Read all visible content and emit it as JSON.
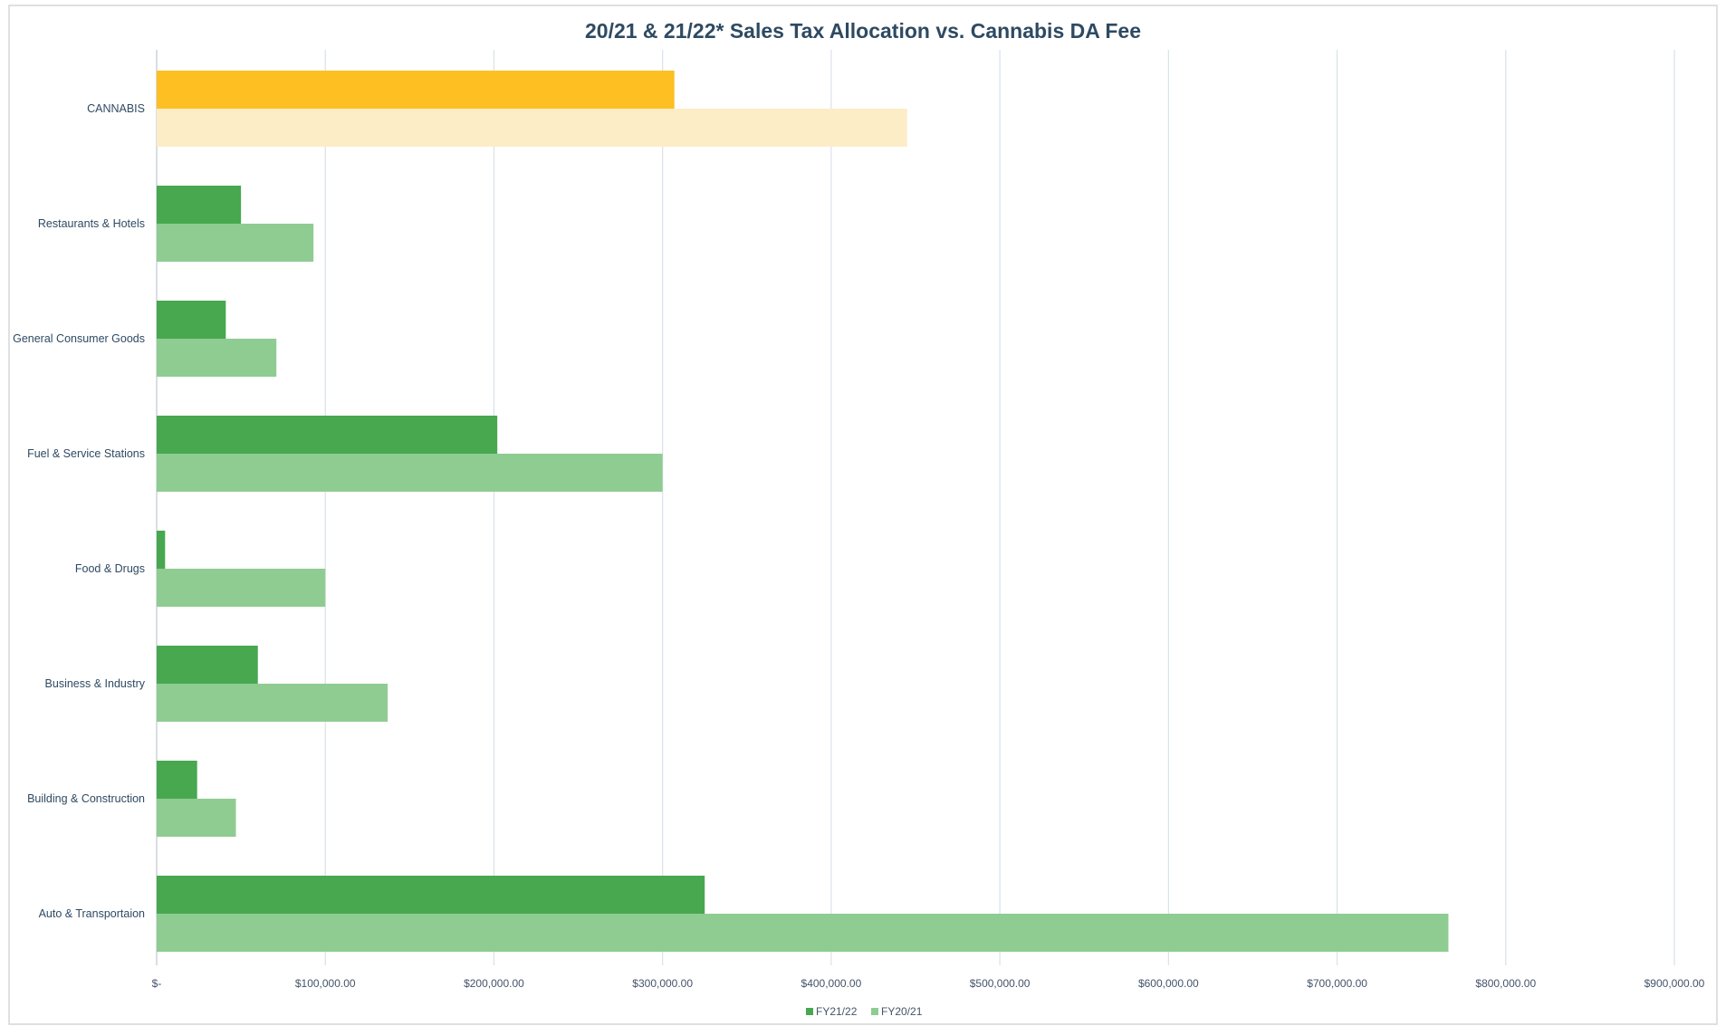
{
  "chart_data": {
    "type": "bar",
    "orientation": "horizontal",
    "title": "20/21 & 21/22* Sales Tax Allocation vs. Cannabis DA Fee",
    "xlabel": "",
    "ylabel": "",
    "xlim": [
      0,
      900000
    ],
    "grid": true,
    "legend_position": "bottom",
    "categories": [
      "CANNABIS",
      "Restaurants & Hotels",
      "General Consumer Goods",
      "Fuel & Service Stations",
      "Food & Drugs",
      "Business & Industry",
      "Building & Construction",
      "Auto & Transportaion"
    ],
    "tick_labels": [
      "$-",
      "$100,000.00",
      "$200,000.00",
      "$300,000.00",
      "$400,000.00",
      "$500,000.00",
      "$600,000.00",
      "$700,000.00",
      "$800,000.00",
      "$900,000.00"
    ],
    "tick_values": [
      0,
      100000,
      200000,
      300000,
      400000,
      500000,
      600000,
      700000,
      800000,
      900000
    ],
    "series": [
      {
        "name": "FY21/22",
        "color": "#47a84f",
        "highlight_color": "#fdbf22",
        "values": [
          307000,
          50000,
          41000,
          202000,
          5000,
          60000,
          24000,
          325000
        ]
      },
      {
        "name": "FY20/21",
        "color": "#8fcc92",
        "highlight_color": "#fdedc7",
        "values": [
          445000,
          93000,
          71000,
          300000,
          100000,
          137000,
          47000,
          766000
        ]
      }
    ]
  }
}
